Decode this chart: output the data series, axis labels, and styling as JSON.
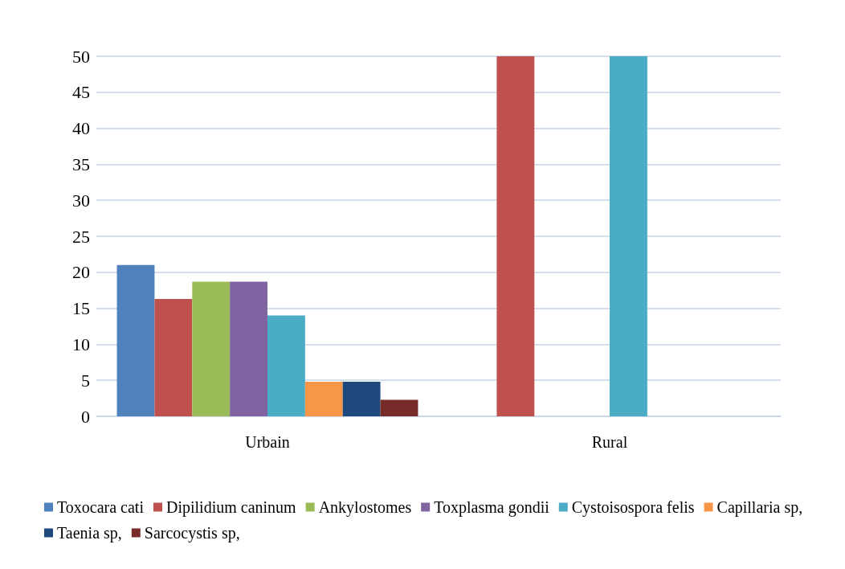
{
  "chart_data": {
    "type": "bar",
    "categories": [
      "Urbain",
      "Rural"
    ],
    "series": [
      {
        "name": "Toxocara cati",
        "color": "#4f81bd",
        "values": [
          21,
          0
        ]
      },
      {
        "name": "Dipilidium caninum",
        "color": "#c0504d",
        "values": [
          16.3,
          50
        ]
      },
      {
        "name": "Ankylostomes",
        "color": "#9bbb59",
        "values": [
          18.7,
          0
        ]
      },
      {
        "name": "Toxplasma gondii",
        "color": "#8064a2",
        "values": [
          18.7,
          0
        ]
      },
      {
        "name": "Cystoisospora felis",
        "color": "#4bacc6",
        "values": [
          14,
          50
        ]
      },
      {
        "name": "Capillaria sp,",
        "color": "#f79646",
        "values": [
          4.8,
          0
        ]
      },
      {
        "name": "Taenia sp,",
        "color": "#1f497d",
        "values": [
          4.8,
          0
        ]
      },
      {
        "name": "Sarcocystis sp,",
        "color": "#772c2a",
        "values": [
          2.3,
          0
        ]
      }
    ],
    "ylim": [
      0,
      50
    ],
    "yticks": [
      0,
      5,
      10,
      15,
      20,
      25,
      30,
      35,
      40,
      45,
      50
    ],
    "grid": "y",
    "legend": "bottom"
  }
}
